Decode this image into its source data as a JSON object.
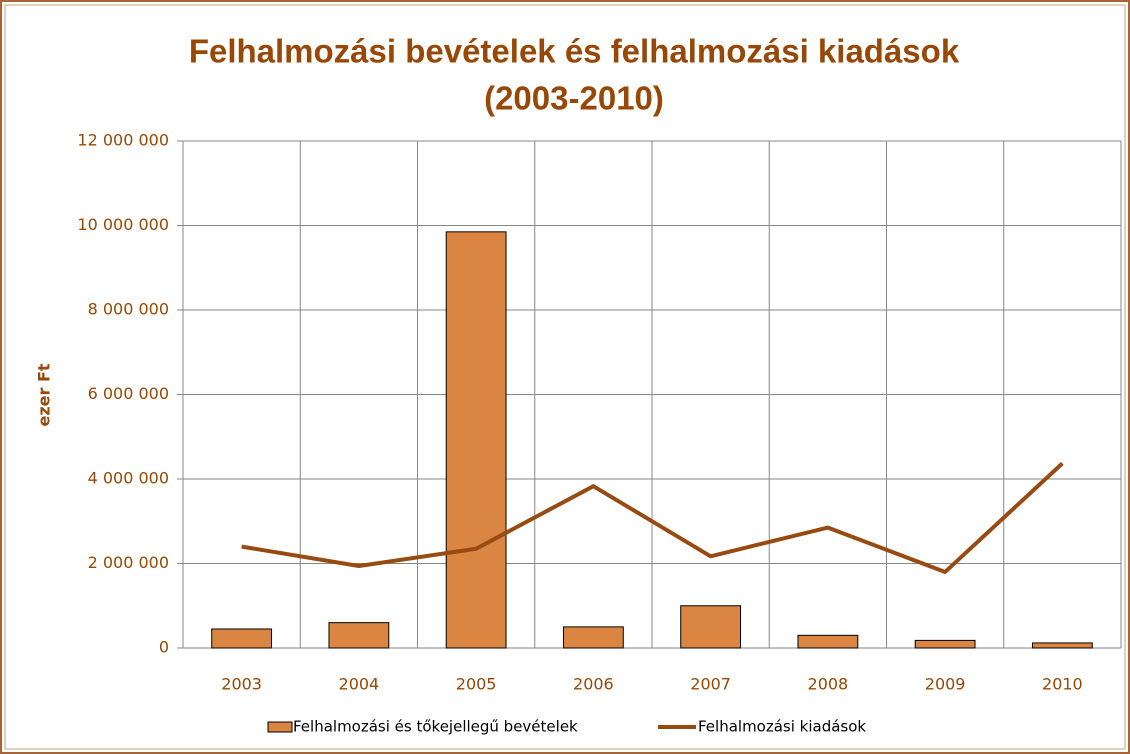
{
  "chart_data": {
    "type": "bar",
    "title": [
      "Felhalmozási bevételek és felhalmozási kiadások",
      "(2003-2010)"
    ],
    "y_label": "ezer Ft",
    "categories": [
      "2003",
      "2004",
      "2005",
      "2006",
      "2007",
      "2008",
      "2009",
      "2010"
    ],
    "series": [
      {
        "name": "Felhalmozási és tőkejellegű bevételek",
        "type": "bar",
        "color": "#da8541",
        "values": [
          450000,
          600000,
          9850000,
          500000,
          1000000,
          300000,
          180000,
          120000
        ]
      },
      {
        "name": "Felhalmozási kiadások",
        "type": "line",
        "color": "#974b12",
        "values": [
          2400000,
          1940000,
          2350000,
          3830000,
          2170000,
          2850000,
          1800000,
          4370000
        ]
      }
    ],
    "ylim": [
      0,
      12000000
    ],
    "yticks": [
      0,
      {
        "value": 2000000,
        "label": "2 000 000"
      },
      {
        "value": 4000000,
        "label": "4 000 000"
      },
      {
        "value": 6000000,
        "label": "6 000 000"
      },
      {
        "value": 8000000,
        "label": "8 000 000"
      },
      {
        "value": 10000000,
        "label": "10 000 000"
      },
      {
        "value": 12000000,
        "label": "12 000 000"
      }
    ],
    "grid": true,
    "legend": "bottom"
  }
}
